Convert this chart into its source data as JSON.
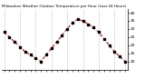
{
  "title": "Milwaukee Weather Outdoor Temperature per Hour (Last 24 Hours)",
  "x_values": [
    0,
    1,
    2,
    3,
    4,
    5,
    6,
    7,
    8,
    9,
    10,
    11,
    12,
    13,
    14,
    15,
    16,
    17,
    18,
    19,
    20,
    21,
    22,
    23
  ],
  "y_values": [
    28,
    25,
    22,
    19,
    16,
    14,
    12,
    10,
    14,
    18,
    22,
    26,
    30,
    34,
    36,
    35,
    33,
    31,
    28,
    24,
    20,
    16,
    13,
    10
  ],
  "line_color": "#dd0000",
  "marker_color": "#000000",
  "background_color": "#ffffff",
  "grid_color": "#888888",
  "ylim": [
    5,
    42
  ],
  "ytick_values": [
    10,
    15,
    20,
    25,
    30,
    35,
    40
  ],
  "title_fontsize": 3.0,
  "tick_fontsize": 3.2,
  "vline_positions": [
    0,
    3,
    6,
    9,
    12,
    15,
    18,
    21,
    23
  ]
}
